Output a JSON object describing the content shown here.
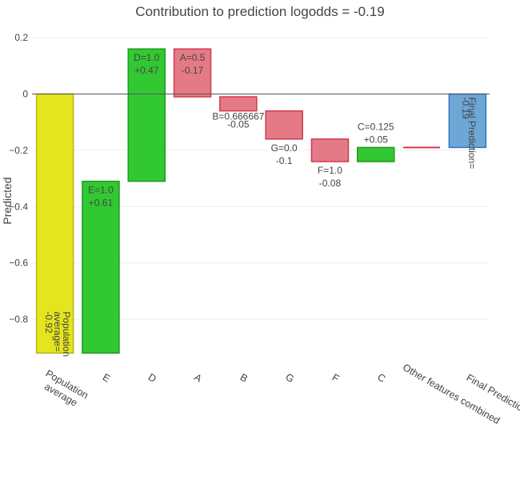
{
  "chart_data": {
    "type": "bar",
    "subtype": "waterfall",
    "title": "Contribution to prediction logodds = -0.19",
    "ylabel": "Predicted",
    "ylim": [
      -0.92,
      0.22
    ],
    "yticks": [
      0.2,
      0,
      -0.2,
      -0.4,
      -0.6,
      -0.8
    ],
    "ytick_labels": [
      "0.2",
      "0",
      "−0.2",
      "−0.4",
      "−0.6",
      "−0.8"
    ],
    "grid": true,
    "zero_line": true,
    "categories": [
      "Population average",
      "E",
      "D",
      "A",
      "B",
      "G",
      "F",
      "C",
      "Other features combined",
      "Final Prediction"
    ],
    "category_labels": [
      [
        "Population",
        "average"
      ],
      [
        "E"
      ],
      [
        "D"
      ],
      [
        "A"
      ],
      [
        "B"
      ],
      [
        "G"
      ],
      [
        "F"
      ],
      [
        "C"
      ],
      [
        "Other features combined"
      ],
      [
        "Final Prediction"
      ]
    ],
    "bars": [
      {
        "name": "Population average",
        "base": 0,
        "end": -0.92,
        "kind": "base",
        "label": [
          "Population",
          "average=",
          "-0.92"
        ],
        "label_rotated": true
      },
      {
        "name": "E",
        "base": -0.92,
        "end": -0.31,
        "kind": "positive",
        "label": [
          "E=1.0",
          "+0.61"
        ]
      },
      {
        "name": "D",
        "base": -0.31,
        "end": 0.16,
        "kind": "positive",
        "label": [
          "D=1.0",
          "+0.47"
        ]
      },
      {
        "name": "A",
        "base": 0.16,
        "end": -0.01,
        "kind": "negative",
        "label": [
          "A=0.5",
          "-0.17"
        ]
      },
      {
        "name": "B",
        "base": -0.01,
        "end": -0.06,
        "kind": "negative",
        "label": [
          "B=0.666667",
          "-0.05"
        ],
        "label_small": true
      },
      {
        "name": "G",
        "base": -0.06,
        "end": -0.16,
        "kind": "negative",
        "label": [
          "G=0.0",
          "-0.1"
        ]
      },
      {
        "name": "F",
        "base": -0.16,
        "end": -0.24,
        "kind": "negative",
        "label": [
          "F=1.0",
          "-0.08"
        ]
      },
      {
        "name": "C",
        "base": -0.24,
        "end": -0.19,
        "kind": "positive",
        "label": [
          "C=0.125",
          "+0.05"
        ]
      },
      {
        "name": "Other features combined",
        "base": -0.19,
        "end": -0.19,
        "kind": "negative",
        "label": []
      },
      {
        "name": "Final Prediction",
        "base": 0,
        "end": -0.19,
        "kind": "final",
        "label": [
          "Final Prediction=",
          "-0.19"
        ],
        "label_rotated": true,
        "label_small": true
      }
    ],
    "colors": {
      "base_fill": "#e4e51e",
      "base_stroke": "#b5b61a",
      "positive_fill": "#32c832",
      "positive_stroke": "#1f9a1f",
      "negative_fill": "#e57a87",
      "negative_stroke": "#d2394c",
      "final_fill": "#6ea6d6",
      "final_stroke": "#2f78bf",
      "grid": "#eeeeee",
      "zero_line": "#555555",
      "text": "#444444"
    }
  }
}
